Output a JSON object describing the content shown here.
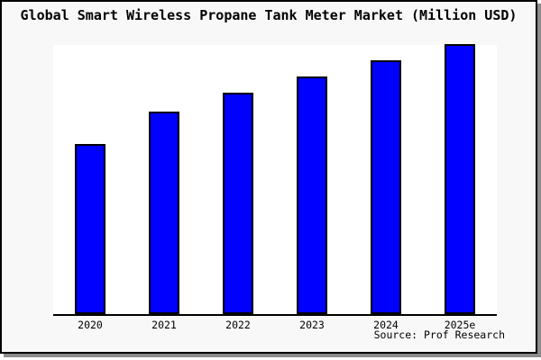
{
  "title": "Global Smart Wireless Propane Tank Meter Market (Million USD)",
  "source": "Source: Prof Research",
  "colors": {
    "bar_fill": "#0000ff",
    "bar_edge": "#000000",
    "figure_background": "#f8f8f8",
    "plot_background": "#ffffff",
    "axis_line": "#000000",
    "frame_border": "#000000",
    "frame_shadow": "#8c8c8c",
    "text": "#000000"
  },
  "chart_data": {
    "type": "bar",
    "title": "Global Smart Wireless Propane Tank Meter Market (Million USD)",
    "categories": [
      "2020",
      "2021",
      "2022",
      "2023",
      "2024",
      "2025e"
    ],
    "values": [
      63,
      75,
      82,
      88,
      94,
      100
    ],
    "xlabel": "",
    "ylabel": "",
    "ylim": [
      0,
      100.3
    ],
    "grid": false,
    "legend": false,
    "y_axis_ticks_visible": false,
    "note": "No y-axis tick labels shown in figure; values estimated in relative units from bar heights",
    "annotation": "Source: Prof Research"
  }
}
